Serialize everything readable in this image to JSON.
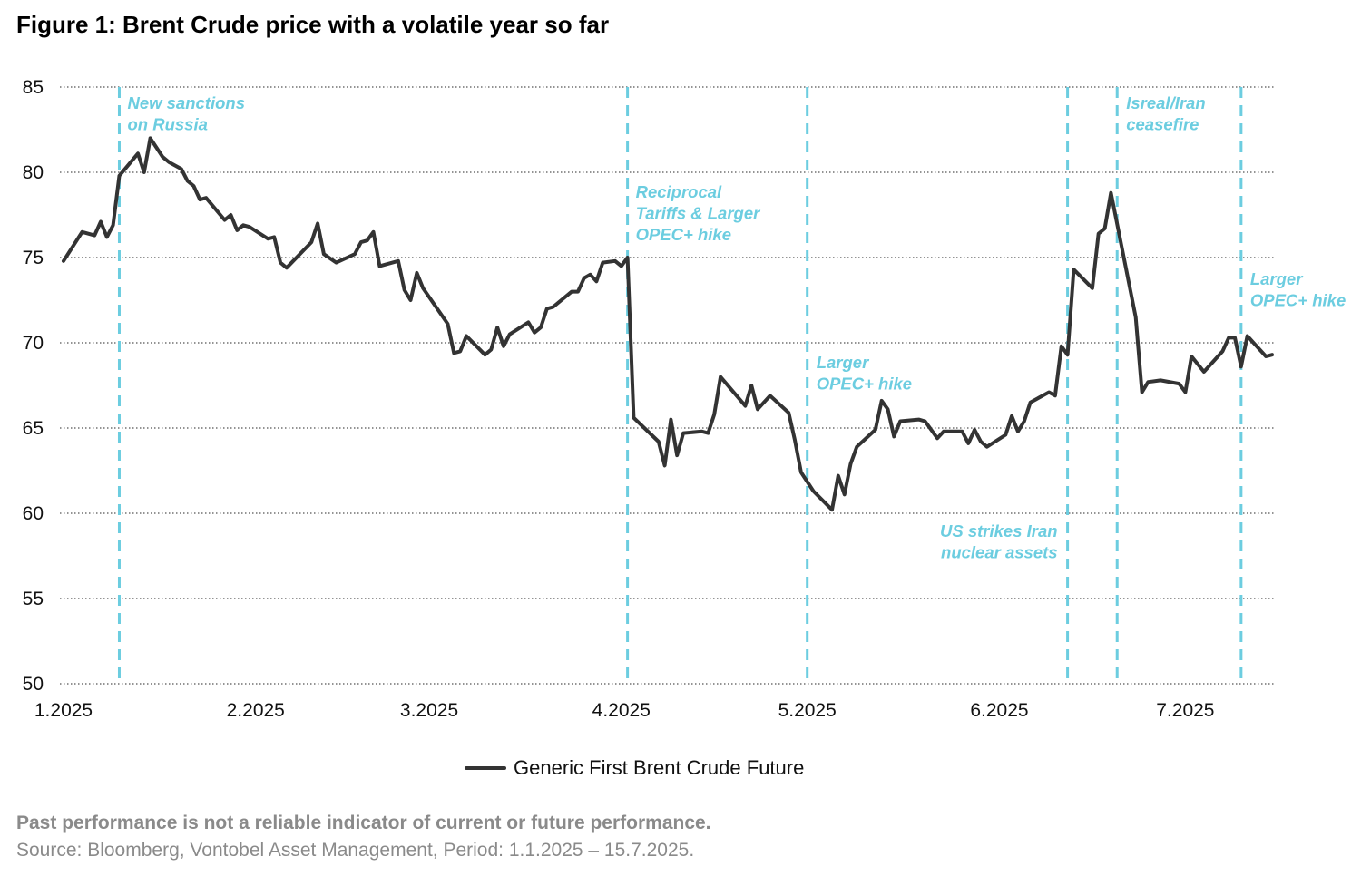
{
  "chart_data": {
    "type": "line",
    "title": "Figure 1: Brent Crude price with a volatile year so far",
    "xlabel": "",
    "ylabel": "",
    "ylim": [
      50,
      85
    ],
    "yticks": [
      50,
      55,
      60,
      65,
      70,
      75,
      80,
      85
    ],
    "xlim": [
      "2025-01-01",
      "2025-07-15"
    ],
    "xticks": [
      {
        "date": "2025-01-01",
        "label": "1.2025"
      },
      {
        "date": "2025-02-01",
        "label": "2.2025"
      },
      {
        "date": "2025-03-01",
        "label": "3.2025"
      },
      {
        "date": "2025-04-01",
        "label": "4.2025"
      },
      {
        "date": "2025-05-01",
        "label": "5.2025"
      },
      {
        "date": "2025-06-01",
        "label": "6.2025"
      },
      {
        "date": "2025-07-01",
        "label": "7.2025"
      }
    ],
    "grid": "horizontal dotted",
    "legend_position": "bottom",
    "series": [
      {
        "name": "Generic First Brent Crude Future",
        "color": "#333333",
        "points": [
          [
            "2025-01-01",
            74.8
          ],
          [
            "2025-01-04",
            76.5
          ],
          [
            "2025-01-06",
            76.3
          ],
          [
            "2025-01-07",
            77.1
          ],
          [
            "2025-01-08",
            76.2
          ],
          [
            "2025-01-09",
            76.9
          ],
          [
            "2025-01-10",
            79.8
          ],
          [
            "2025-01-13",
            81.1
          ],
          [
            "2025-01-14",
            80.0
          ],
          [
            "2025-01-15",
            82.0
          ],
          [
            "2025-01-17",
            80.9
          ],
          [
            "2025-01-18",
            80.6
          ],
          [
            "2025-01-20",
            80.2
          ],
          [
            "2025-01-21",
            79.5
          ],
          [
            "2025-01-22",
            79.2
          ],
          [
            "2025-01-23",
            78.4
          ],
          [
            "2025-01-24",
            78.5
          ],
          [
            "2025-01-27",
            77.2
          ],
          [
            "2025-01-28",
            77.5
          ],
          [
            "2025-01-29",
            76.6
          ],
          [
            "2025-01-30",
            76.9
          ],
          [
            "2025-01-31",
            76.8
          ],
          [
            "2025-02-03",
            76.1
          ],
          [
            "2025-02-04",
            76.2
          ],
          [
            "2025-02-05",
            74.7
          ],
          [
            "2025-02-06",
            74.4
          ],
          [
            "2025-02-10",
            75.9
          ],
          [
            "2025-02-11",
            77.0
          ],
          [
            "2025-02-12",
            75.2
          ],
          [
            "2025-02-14",
            74.7
          ],
          [
            "2025-02-17",
            75.2
          ],
          [
            "2025-02-18",
            75.9
          ],
          [
            "2025-02-19",
            76.0
          ],
          [
            "2025-02-20",
            76.5
          ],
          [
            "2025-02-21",
            74.5
          ],
          [
            "2025-02-24",
            74.8
          ],
          [
            "2025-02-25",
            73.1
          ],
          [
            "2025-02-26",
            72.5
          ],
          [
            "2025-02-27",
            74.1
          ],
          [
            "2025-02-28",
            73.2
          ],
          [
            "2025-03-04",
            71.1
          ],
          [
            "2025-03-05",
            69.4
          ],
          [
            "2025-03-06",
            69.5
          ],
          [
            "2025-03-07",
            70.4
          ],
          [
            "2025-03-10",
            69.3
          ],
          [
            "2025-03-11",
            69.6
          ],
          [
            "2025-03-12",
            70.9
          ],
          [
            "2025-03-13",
            69.8
          ],
          [
            "2025-03-14",
            70.5
          ],
          [
            "2025-03-17",
            71.2
          ],
          [
            "2025-03-18",
            70.6
          ],
          [
            "2025-03-19",
            70.9
          ],
          [
            "2025-03-20",
            72.0
          ],
          [
            "2025-03-21",
            72.1
          ],
          [
            "2025-03-24",
            73.0
          ],
          [
            "2025-03-25",
            73.0
          ],
          [
            "2025-03-26",
            73.8
          ],
          [
            "2025-03-27",
            74.0
          ],
          [
            "2025-03-28",
            73.6
          ],
          [
            "2025-03-29",
            74.7
          ],
          [
            "2025-03-31",
            74.8
          ],
          [
            "2025-04-01",
            74.5
          ],
          [
            "2025-04-02",
            75.0
          ],
          [
            "2025-04-03",
            65.6
          ],
          [
            "2025-04-07",
            64.2
          ],
          [
            "2025-04-08",
            62.8
          ],
          [
            "2025-04-09",
            65.5
          ],
          [
            "2025-04-10",
            63.4
          ],
          [
            "2025-04-11",
            64.7
          ],
          [
            "2025-04-14",
            64.8
          ],
          [
            "2025-04-15",
            64.7
          ],
          [
            "2025-04-16",
            65.8
          ],
          [
            "2025-04-17",
            68.0
          ],
          [
            "2025-04-21",
            66.3
          ],
          [
            "2025-04-22",
            67.5
          ],
          [
            "2025-04-23",
            66.1
          ],
          [
            "2025-04-25",
            66.9
          ],
          [
            "2025-04-28",
            65.9
          ],
          [
            "2025-04-29",
            64.3
          ],
          [
            "2025-04-30",
            62.4
          ],
          [
            "2025-05-02",
            61.3
          ],
          [
            "2025-05-05",
            60.2
          ],
          [
            "2025-05-06",
            62.2
          ],
          [
            "2025-05-07",
            61.1
          ],
          [
            "2025-05-08",
            62.9
          ],
          [
            "2025-05-09",
            63.9
          ],
          [
            "2025-05-12",
            64.9
          ],
          [
            "2025-05-13",
            66.6
          ],
          [
            "2025-05-14",
            66.1
          ],
          [
            "2025-05-15",
            64.5
          ],
          [
            "2025-05-16",
            65.4
          ],
          [
            "2025-05-19",
            65.5
          ],
          [
            "2025-05-20",
            65.4
          ],
          [
            "2025-05-22",
            64.4
          ],
          [
            "2025-05-23",
            64.8
          ],
          [
            "2025-05-26",
            64.8
          ],
          [
            "2025-05-27",
            64.1
          ],
          [
            "2025-05-28",
            64.9
          ],
          [
            "2025-05-29",
            64.2
          ],
          [
            "2025-05-30",
            63.9
          ],
          [
            "2025-06-02",
            64.6
          ],
          [
            "2025-06-03",
            65.7
          ],
          [
            "2025-06-04",
            64.8
          ],
          [
            "2025-06-05",
            65.4
          ],
          [
            "2025-06-06",
            66.5
          ],
          [
            "2025-06-09",
            67.1
          ],
          [
            "2025-06-10",
            66.9
          ],
          [
            "2025-06-11",
            69.8
          ],
          [
            "2025-06-12",
            69.3
          ],
          [
            "2025-06-13",
            74.3
          ],
          [
            "2025-06-16",
            73.2
          ],
          [
            "2025-06-17",
            76.4
          ],
          [
            "2025-06-18",
            76.7
          ],
          [
            "2025-06-19",
            78.8
          ],
          [
            "2025-06-23",
            71.5
          ],
          [
            "2025-06-24",
            67.1
          ],
          [
            "2025-06-25",
            67.7
          ],
          [
            "2025-06-27",
            67.8
          ],
          [
            "2025-06-30",
            67.6
          ],
          [
            "2025-07-01",
            67.1
          ],
          [
            "2025-07-02",
            69.2
          ],
          [
            "2025-07-04",
            68.3
          ],
          [
            "2025-07-07",
            69.5
          ],
          [
            "2025-07-08",
            70.3
          ],
          [
            "2025-07-09",
            70.3
          ],
          [
            "2025-07-10",
            68.6
          ],
          [
            "2025-07-11",
            70.4
          ],
          [
            "2025-07-14",
            69.2
          ],
          [
            "2025-07-15",
            69.3
          ]
        ]
      }
    ],
    "events": [
      {
        "date": "2025-01-10",
        "lines": [
          "New sanctions",
          "on Russia"
        ]
      },
      {
        "date": "2025-04-02",
        "lines": [
          "Reciprocal",
          "Tariffs & Larger",
          "OPEC+ hike"
        ]
      },
      {
        "date": "2025-05-01",
        "lines": [
          "Larger",
          "OPEC+ hike"
        ]
      },
      {
        "date": "2025-06-12",
        "lines": [
          "US strikes Iran",
          "nuclear assets"
        ]
      },
      {
        "date": "2025-06-20",
        "lines": [
          "Isreal/Iran",
          "ceasefire"
        ]
      },
      {
        "date": "2025-07-10",
        "lines": [
          "Larger",
          "OPEC+ hike"
        ]
      }
    ],
    "event_color": "#6ccde0"
  },
  "legend": {
    "label": "Generic First Brent Crude Future"
  },
  "footer": {
    "disclaimer": "Past performance is not a reliable indicator of current or future performance.",
    "source": "Source: Bloomberg, Vontobel Asset Management, Period: 1.1.2025 – 15.7.2025."
  }
}
